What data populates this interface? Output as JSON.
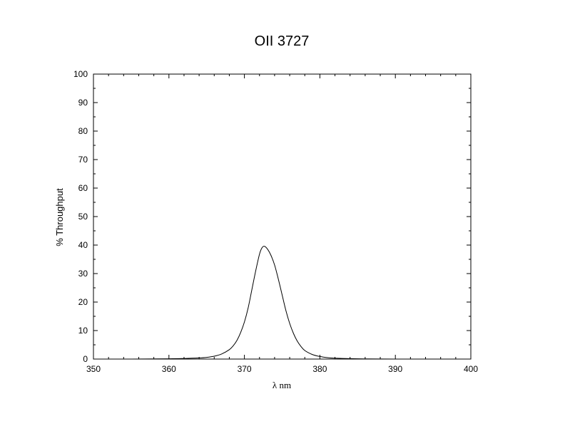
{
  "chart_data": {
    "type": "line",
    "title": "OII 3727",
    "xlabel": "λ nm",
    "ylabel": "% Throughput",
    "xlim": [
      350,
      400
    ],
    "ylim": [
      0,
      100
    ],
    "x_ticks": [
      350,
      360,
      370,
      380,
      390,
      400
    ],
    "y_ticks": [
      0,
      10,
      20,
      30,
      40,
      50,
      60,
      70,
      80,
      90,
      100
    ],
    "grid": false,
    "colors": {
      "line": "#000000",
      "axes": "#000000",
      "background": "#ffffff"
    },
    "series": [
      {
        "x": [
          350,
          355,
          360,
          362,
          364,
          365,
          366,
          367,
          368,
          368.5,
          369,
          369.5,
          370,
          370.5,
          371,
          371.5,
          372,
          372.3,
          372.6,
          373,
          373.5,
          374,
          374.5,
          375,
          375.5,
          376,
          376.5,
          377,
          377.5,
          378,
          379,
          380,
          381,
          382,
          384,
          386,
          390,
          395,
          400
        ],
        "y": [
          0,
          0,
          0.1,
          0.2,
          0.4,
          0.6,
          1.0,
          1.8,
          3.3,
          4.6,
          6.5,
          9.3,
          13.0,
          18.0,
          24.5,
          31.0,
          36.8,
          38.9,
          39.6,
          38.8,
          36.5,
          33.0,
          28.0,
          22.5,
          17.0,
          12.5,
          9.0,
          6.3,
          4.4,
          3.0,
          1.6,
          0.9,
          0.5,
          0.3,
          0.15,
          0.05,
          0,
          0,
          0
        ]
      }
    ]
  }
}
